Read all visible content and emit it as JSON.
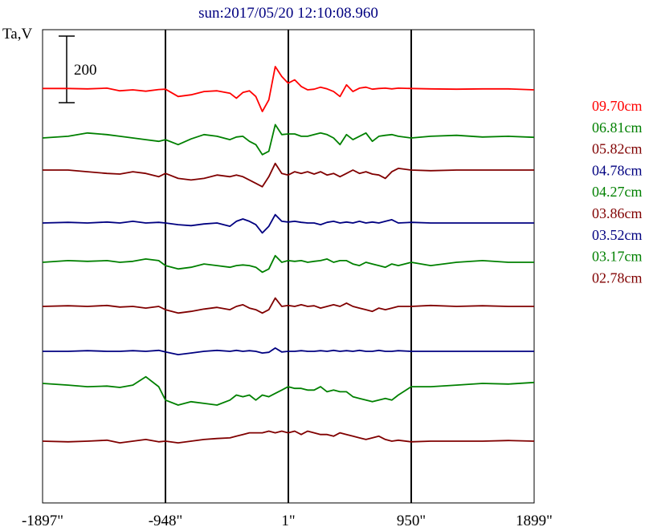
{
  "chart_data": {
    "type": "line",
    "title": "sun:2017/05/20 12:10:08.960",
    "ylabel": "Ta,V",
    "scale_bar_label": "200",
    "x_ticks": [
      "-1897\"",
      "-948\"",
      "1\"",
      "950\"",
      "1899\""
    ],
    "xlim": [
      -1897,
      1899
    ],
    "vertical_lines_at": [
      -948,
      1,
      950
    ],
    "colors": {
      "red": "#ff0000",
      "green": "#008000",
      "darkred": "#800000",
      "blue": "#000080"
    },
    "series": [
      {
        "name": "09.70cm",
        "color": "#ff0000",
        "x": [
          -1897,
          -1700,
          -1550,
          -1400,
          -1300,
          -1200,
          -1100,
          -1000,
          -948,
          -850,
          -750,
          -650,
          -550,
          -450,
          -400,
          -350,
          -300,
          -250,
          -200,
          -150,
          -100,
          -50,
          0,
          50,
          100,
          150,
          200,
          250,
          300,
          350,
          400,
          450,
          500,
          550,
          600,
          650,
          700,
          750,
          800,
          850,
          950,
          1100,
          1300,
          1500,
          1700,
          1899
        ],
        "y": [
          4,
          4,
          3,
          5,
          -3,
          0,
          -4,
          1,
          2,
          -20,
          -15,
          -5,
          -3,
          -10,
          -25,
          -8,
          -3,
          -20,
          -65,
          -30,
          70,
          40,
          20,
          30,
          10,
          0,
          2,
          8,
          3,
          -5,
          -20,
          15,
          -5,
          5,
          8,
          2,
          4,
          5,
          3,
          5,
          4,
          3,
          2,
          3,
          3,
          0
        ]
      },
      {
        "name": "06.81cm",
        "color": "#008000",
        "x": [
          -1897,
          -1700,
          -1550,
          -1400,
          -1300,
          -1200,
          -1100,
          -1000,
          -948,
          -850,
          -750,
          -650,
          -550,
          -450,
          -400,
          -350,
          -300,
          -250,
          -200,
          -150,
          -100,
          -50,
          0,
          50,
          100,
          150,
          200,
          250,
          300,
          350,
          400,
          450,
          500,
          550,
          600,
          650,
          700,
          750,
          800,
          850,
          950,
          1100,
          1300,
          1500,
          1700,
          1899
        ],
        "y": [
          0,
          5,
          15,
          10,
          5,
          0,
          -5,
          -10,
          -5,
          -20,
          -3,
          10,
          5,
          -5,
          3,
          5,
          -10,
          -20,
          -50,
          -40,
          40,
          10,
          12,
          12,
          5,
          5,
          10,
          15,
          10,
          0,
          -20,
          10,
          -5,
          5,
          15,
          -10,
          5,
          8,
          10,
          5,
          0,
          5,
          8,
          3,
          5,
          2
        ]
      },
      {
        "name": "05.82cm",
        "color": "#800000",
        "x": [
          -1897,
          -1700,
          -1550,
          -1400,
          -1300,
          -1200,
          -1100,
          -1000,
          -948,
          -850,
          -750,
          -650,
          -550,
          -450,
          -400,
          -350,
          -300,
          -250,
          -200,
          -150,
          -100,
          -50,
          0,
          50,
          100,
          150,
          200,
          250,
          300,
          350,
          400,
          450,
          500,
          550,
          600,
          650,
          700,
          750,
          800,
          850,
          950,
          1100,
          1300,
          1500,
          1700,
          1899
        ],
        "y": [
          0,
          0,
          -5,
          -10,
          -12,
          -5,
          -10,
          -20,
          -10,
          -25,
          -30,
          -25,
          -15,
          -20,
          -15,
          -20,
          -30,
          -40,
          -50,
          -20,
          20,
          -10,
          -15,
          -5,
          -10,
          -5,
          -12,
          -5,
          -15,
          -10,
          -20,
          -10,
          0,
          -10,
          -5,
          -12,
          -15,
          -25,
          -5,
          5,
          0,
          -2,
          0,
          0,
          0,
          0
        ]
      },
      {
        "name": "04.78cm",
        "color": "#000080",
        "x": [
          -1897,
          -1700,
          -1550,
          -1400,
          -1300,
          -1200,
          -1100,
          -1000,
          -948,
          -850,
          -750,
          -650,
          -550,
          -450,
          -400,
          -350,
          -300,
          -250,
          -200,
          -150,
          -100,
          -50,
          0,
          50,
          100,
          150,
          200,
          250,
          300,
          350,
          400,
          450,
          500,
          550,
          600,
          650,
          700,
          750,
          800,
          850,
          950,
          1100,
          1300,
          1500,
          1700,
          1899
        ],
        "y": [
          0,
          2,
          0,
          3,
          0,
          5,
          0,
          2,
          0,
          -5,
          -8,
          -3,
          0,
          -10,
          5,
          12,
          5,
          -5,
          -30,
          -10,
          25,
          5,
          3,
          5,
          2,
          0,
          0,
          -5,
          2,
          5,
          0,
          3,
          0,
          5,
          0,
          3,
          0,
          5,
          10,
          0,
          2,
          0,
          0,
          0,
          0,
          0
        ]
      },
      {
        "name": "04.27cm",
        "color": "#008000",
        "x": [
          -1897,
          -1700,
          -1550,
          -1400,
          -1300,
          -1200,
          -1100,
          -1000,
          -948,
          -850,
          -750,
          -650,
          -550,
          -450,
          -400,
          -350,
          -300,
          -250,
          -200,
          -150,
          -100,
          -50,
          0,
          50,
          100,
          150,
          200,
          250,
          300,
          350,
          400,
          450,
          500,
          550,
          600,
          650,
          700,
          750,
          800,
          850,
          950,
          1100,
          1300,
          1500,
          1700,
          1899
        ],
        "y": [
          0,
          5,
          3,
          5,
          0,
          3,
          10,
          5,
          -10,
          -20,
          -15,
          -5,
          -10,
          -15,
          -10,
          -8,
          -10,
          -15,
          -30,
          -20,
          20,
          0,
          5,
          3,
          5,
          0,
          3,
          5,
          10,
          0,
          5,
          5,
          -5,
          -10,
          0,
          -5,
          -10,
          -15,
          -5,
          -10,
          0,
          -10,
          0,
          5,
          0,
          0
        ]
      },
      {
        "name": "03.86cm",
        "color": "#800000",
        "x": [
          -1897,
          -1700,
          -1550,
          -1400,
          -1300,
          -1200,
          -1100,
          -1000,
          -948,
          -850,
          -750,
          -650,
          -550,
          -450,
          -400,
          -350,
          -300,
          -250,
          -200,
          -150,
          -100,
          -50,
          0,
          50,
          100,
          150,
          200,
          250,
          300,
          350,
          400,
          450,
          500,
          550,
          600,
          650,
          700,
          750,
          800,
          850,
          950,
          1100,
          1300,
          1500,
          1700,
          1899
        ],
        "y": [
          0,
          2,
          0,
          3,
          -2,
          0,
          -5,
          0,
          -10,
          -20,
          -15,
          -8,
          -3,
          -10,
          0,
          5,
          -5,
          -10,
          -20,
          -10,
          25,
          0,
          3,
          0,
          5,
          0,
          2,
          -5,
          0,
          5,
          0,
          10,
          0,
          -5,
          -10,
          -15,
          -5,
          -10,
          -5,
          0,
          0,
          3,
          0,
          2,
          0,
          0
        ]
      },
      {
        "name": "03.52cm",
        "color": "#000080",
        "x": [
          -1897,
          -1700,
          -1550,
          -1400,
          -1300,
          -1200,
          -1100,
          -1000,
          -948,
          -850,
          -750,
          -650,
          -550,
          -450,
          -400,
          -350,
          -300,
          -250,
          -200,
          -150,
          -100,
          -50,
          0,
          50,
          100,
          150,
          200,
          250,
          300,
          350,
          400,
          450,
          500,
          550,
          600,
          650,
          700,
          750,
          800,
          850,
          950,
          1100,
          1300,
          1500,
          1700,
          1899
        ],
        "y": [
          0,
          0,
          2,
          0,
          0,
          2,
          0,
          3,
          -2,
          -10,
          -5,
          0,
          3,
          0,
          3,
          0,
          2,
          0,
          -5,
          -3,
          10,
          -2,
          0,
          0,
          2,
          0,
          0,
          2,
          0,
          3,
          0,
          2,
          0,
          3,
          0,
          0,
          3,
          0,
          0,
          2,
          0,
          0,
          0,
          0,
          0,
          0
        ]
      },
      {
        "name": "03.17cm",
        "color": "#008000",
        "x": [
          -1897,
          -1700,
          -1550,
          -1400,
          -1300,
          -1200,
          -1100,
          -1000,
          -948,
          -850,
          -750,
          -650,
          -550,
          -450,
          -400,
          -350,
          -300,
          -250,
          -200,
          -150,
          -100,
          -50,
          0,
          50,
          100,
          150,
          200,
          250,
          300,
          350,
          400,
          450,
          500,
          550,
          600,
          650,
          700,
          750,
          800,
          850,
          950,
          1100,
          1300,
          1500,
          1700,
          1899
        ],
        "y": [
          0,
          -5,
          -10,
          -8,
          -12,
          -5,
          20,
          -10,
          -50,
          -65,
          -55,
          -60,
          -65,
          -50,
          -35,
          -40,
          -35,
          -50,
          -35,
          -40,
          -30,
          -20,
          -10,
          -15,
          -15,
          -20,
          -20,
          -10,
          -25,
          -20,
          -25,
          -25,
          -40,
          -45,
          -50,
          -55,
          -50,
          -45,
          -50,
          -35,
          -10,
          -10,
          -5,
          0,
          -2,
          3
        ]
      },
      {
        "name": "02.78cm",
        "color": "#800000",
        "x": [
          -1897,
          -1700,
          -1550,
          -1400,
          -1300,
          -1200,
          -1100,
          -1000,
          -948,
          -850,
          -750,
          -650,
          -550,
          -450,
          -400,
          -350,
          -300,
          -250,
          -200,
          -150,
          -100,
          -50,
          0,
          50,
          100,
          150,
          200,
          250,
          300,
          350,
          400,
          450,
          500,
          550,
          600,
          650,
          700,
          750,
          800,
          850,
          950,
          1100,
          1300,
          1500,
          1700,
          1899
        ],
        "y": [
          0,
          -2,
          0,
          3,
          -5,
          0,
          5,
          -2,
          0,
          -5,
          0,
          5,
          8,
          10,
          15,
          20,
          25,
          25,
          25,
          30,
          25,
          30,
          25,
          30,
          20,
          30,
          25,
          20,
          20,
          15,
          25,
          20,
          15,
          10,
          5,
          10,
          15,
          5,
          0,
          3,
          -2,
          0,
          0,
          0,
          2,
          0
        ]
      }
    ]
  }
}
